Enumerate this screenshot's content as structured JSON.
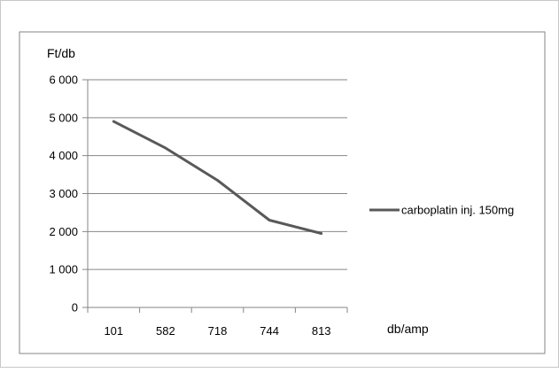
{
  "chart_data": {
    "type": "line",
    "categories": [
      "101",
      "582",
      "718",
      "744",
      "813"
    ],
    "series": [
      {
        "name": "carboplatin inj. 150mg",
        "values": [
          4900,
          4200,
          3350,
          2300,
          1950
        ]
      }
    ],
    "title": "",
    "xlabel": "db/amp",
    "ylabel": "Ft/db",
    "ylim": [
      0,
      6000
    ],
    "yticks": [
      0,
      1000,
      2000,
      3000,
      4000,
      5000,
      6000
    ],
    "ytick_labels": [
      "0",
      "1 000",
      "2 000",
      "3 000",
      "4 000",
      "5 000",
      "6 000"
    ],
    "grid": true,
    "legend_position": "right",
    "colors": {
      "line": "#595959",
      "grid": "#868686",
      "axis": "#868686",
      "border": "#868686"
    }
  }
}
